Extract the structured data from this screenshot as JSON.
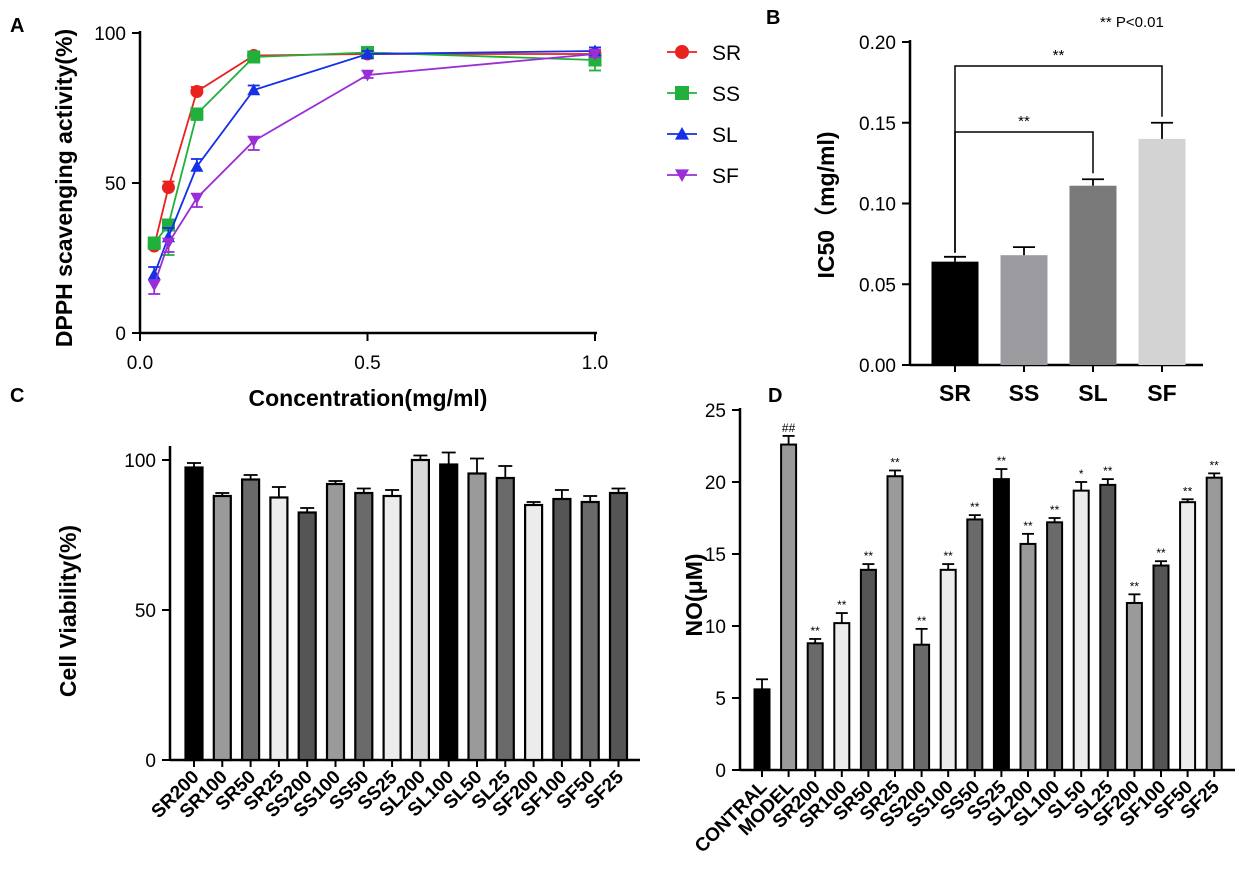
{
  "chart_data": [
    {
      "panel": "A",
      "type": "line",
      "xlabel": "Concentration(mg/ml)",
      "ylabel": "DPPH scavenging activity(%)",
      "xlim": [
        0,
        1.0
      ],
      "ylim": [
        0,
        100
      ],
      "xticks": [
        0.0,
        0.5,
        1.0
      ],
      "xtick_labels": [
        "0.0",
        "0.5",
        "1.0"
      ],
      "yticks": [
        0,
        50,
        100
      ],
      "x": [
        0.03125,
        0.0625,
        0.125,
        0.25,
        0.5,
        1.0
      ],
      "series": [
        {
          "name": "SR",
          "color": "#e8221f",
          "marker": "circle",
          "values": [
            29,
            48.5,
            80.5,
            92.5,
            93,
            93
          ],
          "errors": [
            1.5,
            2,
            1.5,
            1,
            0.8,
            1
          ]
        },
        {
          "name": "SS",
          "color": "#22b03c",
          "marker": "square",
          "values": [
            30,
            36,
            73,
            92,
            93.5,
            91
          ],
          "errors": [
            2,
            10,
            2,
            1.5,
            1,
            3.5
          ]
        },
        {
          "name": "SL",
          "color": "#1530e6",
          "marker": "triangle-up",
          "values": [
            19.5,
            32,
            55.5,
            81,
            93,
            94
          ],
          "errors": [
            2.5,
            3,
            2.5,
            1.5,
            1,
            1.2
          ]
        },
        {
          "name": "SF",
          "color": "#9a2ed6",
          "marker": "triangle-down",
          "values": [
            16,
            30,
            45,
            64,
            86,
            93
          ],
          "errors": [
            3,
            3,
            3,
            3,
            1,
            1
          ]
        }
      ]
    },
    {
      "panel": "B",
      "type": "bar",
      "ylabel": "IC50（mg/ml)",
      "ylim": [
        0,
        0.2
      ],
      "yticks": [
        "0.00",
        "0.05",
        "0.10",
        "0.15",
        "0.20"
      ],
      "categories": [
        "SR",
        "SS",
        "SL",
        "SF"
      ],
      "values": [
        0.064,
        0.068,
        0.111,
        0.14
      ],
      "errors": [
        0.003,
        0.005,
        0.004,
        0.01
      ],
      "colors": [
        "#000000",
        "#9c9ca0",
        "#7a7a7a",
        "#d3d3d3"
      ],
      "note": "** P<0.01",
      "brackets": [
        {
          "from": "SR",
          "to": "SL",
          "label": "**"
        },
        {
          "from": "SR",
          "to": "SF",
          "label": "**"
        }
      ]
    },
    {
      "panel": "C",
      "type": "bar",
      "ylabel": "Cell Viability(%)",
      "ylim": [
        0,
        100
      ],
      "yticks": [
        0,
        50,
        100
      ],
      "categories": [
        "SR200",
        "SR100",
        "SR50",
        "SR25",
        "SS200",
        "SS100",
        "SS50",
        "SS25",
        "SL200",
        "SL100",
        "SL50",
        "SL25",
        "SF200",
        "SF100",
        "SF50",
        "SF25"
      ],
      "values": [
        97.5,
        88,
        93.5,
        87.5,
        82.5,
        92,
        89,
        88,
        100,
        98.5,
        95.5,
        94,
        85,
        87,
        86,
        89
      ],
      "errors": [
        1.5,
        1,
        1.5,
        3.5,
        1.5,
        1,
        1.5,
        2,
        1.5,
        4,
        5,
        4,
        1,
        3,
        2,
        1.5
      ],
      "colors": [
        "#000000",
        "#9a9a9a",
        "#6a6a6a",
        "#ececec",
        "#555555",
        "#9a9a9a",
        "#6a6a6a",
        "#ececec",
        "#d8d8d8",
        "#000000",
        "#9a9a9a",
        "#6a6a6a",
        "#ececec",
        "#555555",
        "#6a6a6a",
        "#555555"
      ]
    },
    {
      "panel": "D",
      "type": "bar",
      "ylabel": "NO(μM)",
      "ylim": [
        0,
        25
      ],
      "yticks": [
        0,
        5,
        10,
        15,
        20,
        25
      ],
      "categories": [
        "CONTRAL",
        "MODEL",
        "SR200",
        "SR100",
        "SR50",
        "SR25",
        "SS200",
        "SS100",
        "SS50",
        "SS25",
        "SL200",
        "SL100",
        "SL50",
        "SL25",
        "SF200",
        "SF100",
        "SF50",
        "SF25"
      ],
      "values": [
        5.6,
        22.6,
        8.8,
        10.2,
        13.9,
        20.4,
        8.7,
        13.9,
        17.4,
        20.2,
        15.7,
        17.2,
        19.4,
        19.8,
        11.6,
        14.2,
        18.6,
        20.3
      ],
      "errors": [
        0.7,
        0.6,
        0.3,
        0.7,
        0.4,
        0.4,
        1.1,
        0.4,
        0.3,
        0.7,
        0.7,
        0.3,
        0.6,
        0.4,
        0.6,
        0.3,
        0.2,
        0.3
      ],
      "sig": [
        "",
        "##",
        "**",
        "**",
        "**",
        "**",
        "**",
        "**",
        "**",
        "**",
        "**",
        "**",
        "*",
        "**",
        "**",
        "**",
        "**",
        "**"
      ],
      "colors": [
        "#000000",
        "#9a9a9a",
        "#6a6a6a",
        "#ececec",
        "#555555",
        "#9a9a9a",
        "#6a6a6a",
        "#ececec",
        "#6a6a6a",
        "#000000",
        "#9a9a9a",
        "#6a6a6a",
        "#ececec",
        "#555555",
        "#9a9a9a",
        "#555555",
        "#ececec",
        "#9a9a9a"
      ]
    }
  ]
}
